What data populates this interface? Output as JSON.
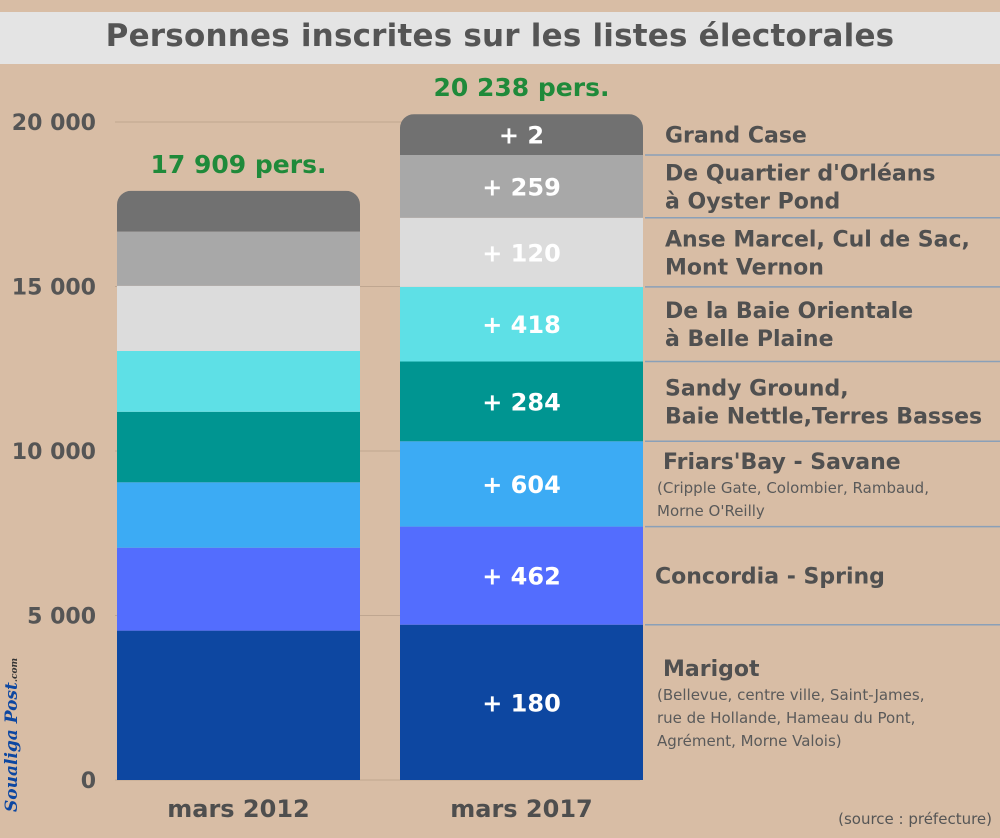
{
  "title": "Personnes inscrites sur les listes électorales",
  "source": "(source : préfecture)",
  "watermark": "Soualiga Post.com",
  "chart_data": {
    "type": "bar",
    "stacked": true,
    "title": "Personnes inscrites sur les listes électorales",
    "categories": [
      "mars 2012",
      "mars 2017"
    ],
    "ylim": [
      0,
      21000
    ],
    "yticks": [
      0,
      5000,
      10000,
      15000,
      20000
    ],
    "ytick_labels": [
      "0",
      "5 000",
      "10 000",
      "15 000",
      "20 000"
    ],
    "grid": true,
    "totals": [
      "17 909 pers.",
      "20 238 pers."
    ],
    "total_values": [
      17909,
      20238
    ],
    "series": [
      {
        "name": "Marigot",
        "sub": [
          "(Bellevue, centre ville, Saint-James,",
          "rue de Hollande, Hameau du Pont,",
          "Agrément, Morne Valois)"
        ],
        "color": "#0d47a1",
        "values": [
          4540,
          4720
        ],
        "increase": "+ 180"
      },
      {
        "name": "Concordia - Spring",
        "sub": [],
        "color": "#536dfe",
        "values": [
          2520,
          2982
        ],
        "increase": "+ 462"
      },
      {
        "name": "Friars'Bay - Savane",
        "sub": [
          "(Cripple Gate, Colombier, Rambaud,",
          "Morne O'Reilly"
        ],
        "color": "#3cabf4",
        "values": [
          1990,
          2594
        ],
        "increase": "+ 604"
      },
      {
        "name": "Sandy Ground,",
        "name2": "Baie Nettle,Terres Basses",
        "sub": [],
        "color": "#009591",
        "values": [
          2140,
          2424
        ],
        "increase": "+ 284"
      },
      {
        "name": "De la Baie Orientale",
        "name2": "à Belle Plaine",
        "sub": [],
        "color": "#5ee0e6",
        "values": [
          1850,
          2268
        ],
        "increase": "+ 418"
      },
      {
        "name": "Anse Marcel, Cul de Sac,",
        "name2": "Mont Vernon",
        "sub": [],
        "color": "#dcdcdc",
        "values": [
          1980,
          2100
        ],
        "increase": "+ 120"
      },
      {
        "name": "De Quartier d'Orléans",
        "name2": "à Oyster Pond",
        "sub": [],
        "color": "#a8a8a8",
        "values": [
          1650,
          1909
        ],
        "increase": "+ 259"
      },
      {
        "name": "Grand Case",
        "sub": [],
        "color": "#717171",
        "values": [
          1239,
          1241
        ],
        "increase": "+ 2"
      }
    ]
  }
}
